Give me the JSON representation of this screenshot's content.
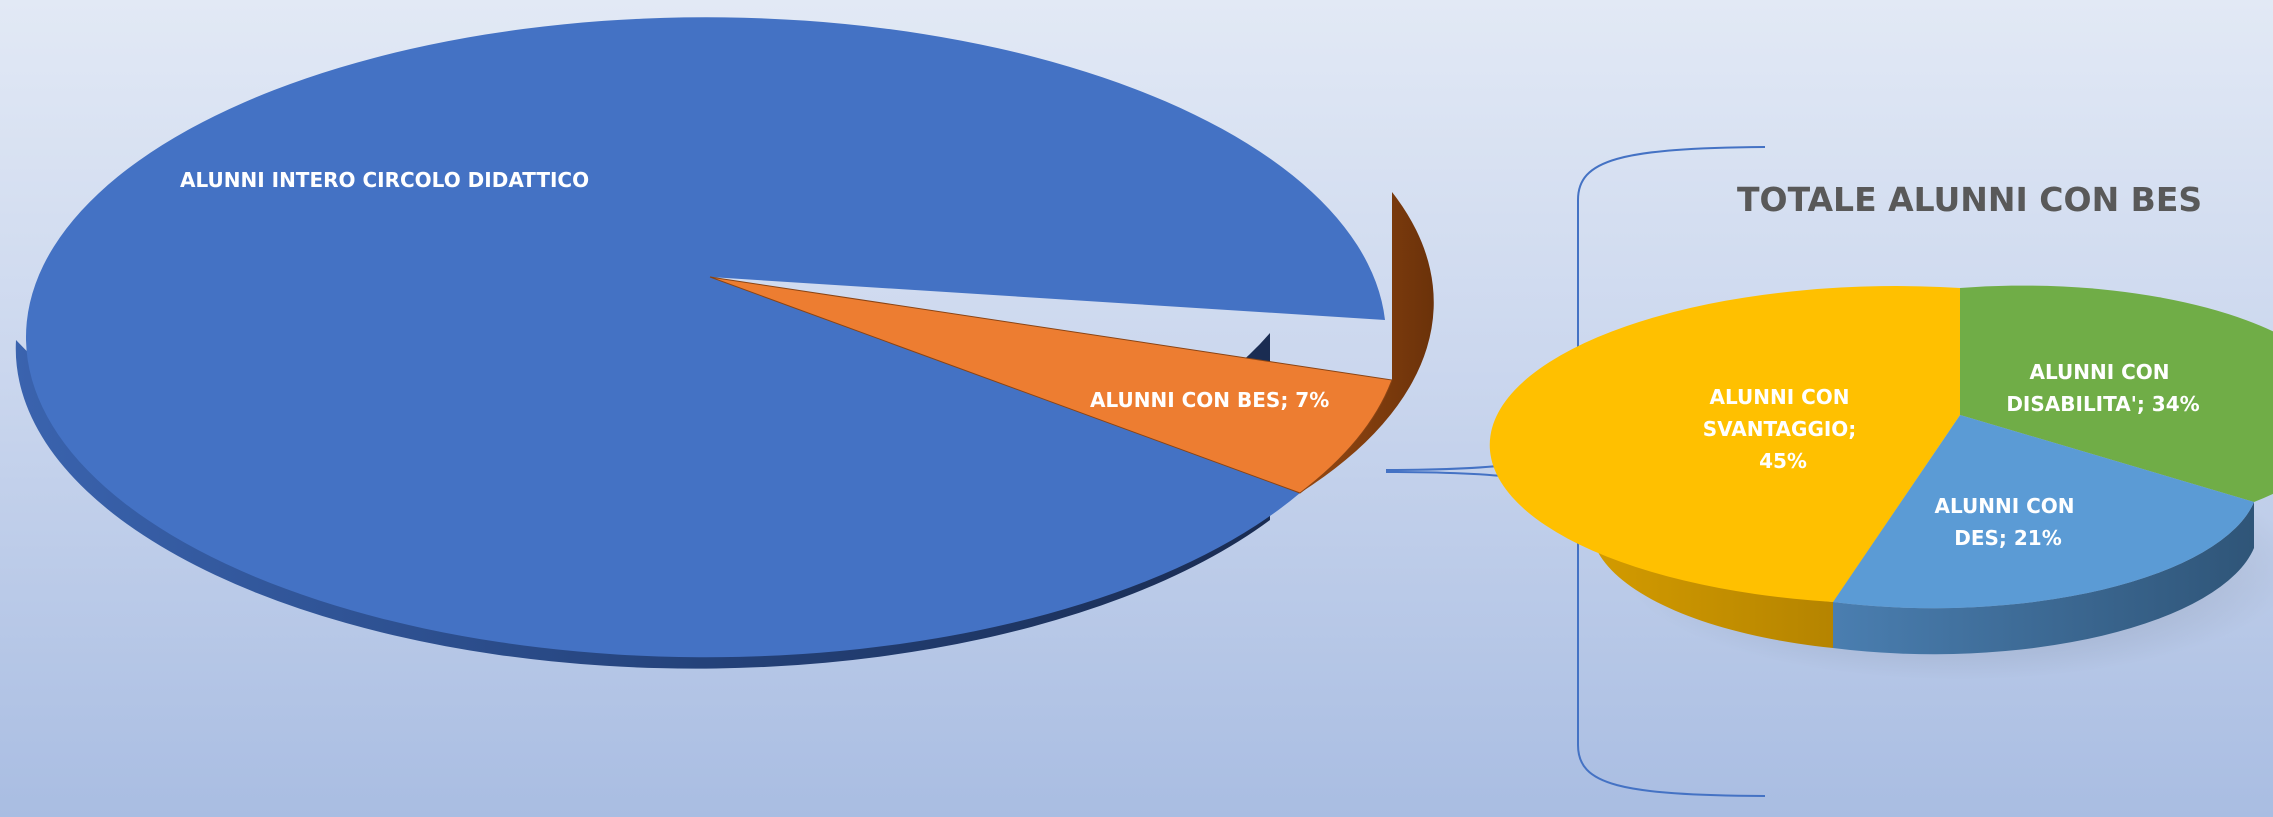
{
  "chart_data": [
    {
      "type": "pie",
      "variant": "3d-pie-of-pie",
      "title": "",
      "slices": [
        {
          "label": "ALUNNI INTERO CIRCOLO DIDATTICO",
          "value": 93,
          "color": "#4472c4",
          "data_label": "ALUNNI INTERO CIRCOLO DIDATTICO"
        },
        {
          "label": "ALUNNI CON BES",
          "value": 7,
          "color": "#ed7d31",
          "data_label": "ALUNNI CON BES; 7%"
        }
      ]
    },
    {
      "type": "pie",
      "variant": "3d-secondary-pie",
      "title": "TOTALE ALUNNI CON BES",
      "slices": [
        {
          "label": "ALUNNI CON DISABILITA'",
          "value": 34,
          "color": "#70ad47",
          "data_label_lines": [
            "ALUNNI CON",
            "DISABILITA'; 34%"
          ]
        },
        {
          "label": "ALUNNI CON DES",
          "value": 21,
          "color": "#5b9bd5",
          "data_label_lines": [
            "ALUNNI CON",
            "DES; 21%"
          ]
        },
        {
          "label": "ALUNNI CON SVANTAGGIO",
          "value": 45,
          "color": "#ffc000",
          "data_label_lines": [
            "ALUNNI CON",
            "SVANTAGGIO;",
            "45%"
          ]
        }
      ]
    }
  ]
}
